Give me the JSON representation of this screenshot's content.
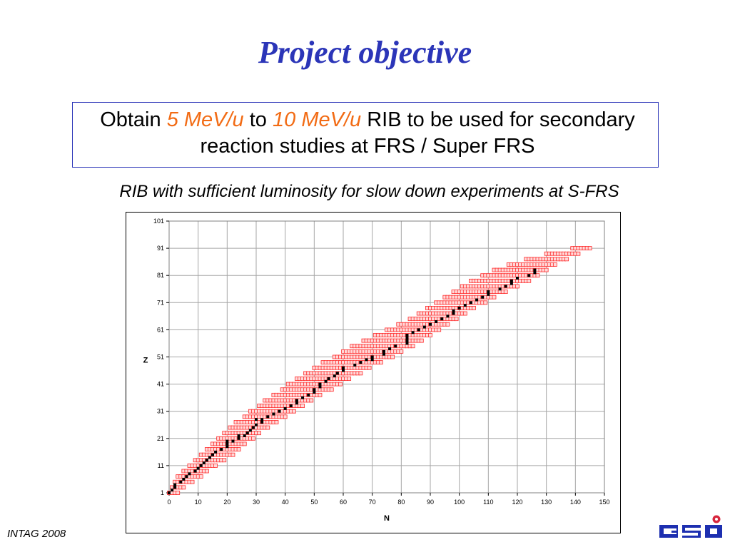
{
  "title": "Project objective",
  "objective": {
    "prefix": "Obtain ",
    "from": "5 MeV/u",
    "to_word": " to ",
    "to": "10 MeV/u",
    "suffix": " RIB to be used for secondary reaction studies at FRS / Super FRS"
  },
  "subtitle": "RIB with sufficient luminosity for slow down experiments at S-FRS",
  "footer": "INTAG 2008",
  "logo_text": "GSI",
  "colors": {
    "title": "#2b35b8",
    "highlight": "#f26b14",
    "band": "#ff2a2a",
    "stable": "#000000"
  },
  "chart_data": {
    "type": "scatter",
    "xlabel": "N",
    "ylabel": "Z",
    "xlim": [
      0,
      150
    ],
    "ylim": [
      1,
      101
    ],
    "x_ticks": [
      0,
      10,
      20,
      30,
      40,
      50,
      60,
      70,
      80,
      90,
      100,
      110,
      120,
      130,
      140,
      150
    ],
    "y_ticks": [
      1,
      11,
      21,
      31,
      41,
      51,
      61,
      71,
      81,
      91,
      101
    ],
    "grid": true,
    "legend": "none",
    "series": [
      {
        "marker": "open red square",
        "band_ranges": [
          [
            1,
            0,
            3
          ],
          [
            3,
            1,
            5
          ],
          [
            5,
            2,
            8
          ],
          [
            7,
            3,
            11
          ],
          [
            9,
            5,
            13
          ],
          [
            11,
            7,
            16
          ],
          [
            13,
            9,
            19
          ],
          [
            15,
            11,
            22
          ],
          [
            17,
            13,
            24
          ],
          [
            19,
            15,
            26
          ],
          [
            21,
            17,
            29
          ],
          [
            23,
            19,
            31
          ],
          [
            25,
            21,
            34
          ],
          [
            27,
            23,
            37
          ],
          [
            29,
            26,
            40
          ],
          [
            31,
            28,
            43
          ],
          [
            33,
            31,
            46
          ],
          [
            35,
            33,
            49
          ],
          [
            37,
            36,
            52
          ],
          [
            39,
            39,
            56
          ],
          [
            41,
            41,
            59
          ],
          [
            43,
            44,
            62
          ],
          [
            45,
            47,
            66
          ],
          [
            47,
            50,
            69
          ],
          [
            49,
            53,
            73
          ],
          [
            51,
            57,
            77
          ],
          [
            53,
            60,
            80
          ],
          [
            55,
            63,
            84
          ],
          [
            57,
            67,
            87
          ],
          [
            59,
            71,
            90
          ],
          [
            61,
            75,
            93
          ],
          [
            63,
            79,
            96
          ],
          [
            65,
            83,
            99
          ],
          [
            67,
            86,
            102
          ],
          [
            69,
            89,
            105
          ],
          [
            71,
            92,
            109
          ],
          [
            73,
            95,
            112
          ],
          [
            75,
            98,
            116
          ],
          [
            77,
            101,
            120
          ],
          [
            79,
            104,
            124
          ],
          [
            81,
            108,
            127
          ],
          [
            83,
            112,
            130
          ],
          [
            85,
            117,
            133
          ],
          [
            87,
            123,
            137
          ],
          [
            89,
            130,
            141
          ],
          [
            91,
            139,
            145
          ]
        ]
      },
      {
        "marker": "filled black square",
        "stable_points": [
          [
            1,
            0
          ],
          [
            2,
            1
          ],
          [
            3,
            2
          ],
          [
            4,
            2
          ],
          [
            5,
            4
          ],
          [
            6,
            5
          ],
          [
            7,
            6
          ],
          [
            8,
            7
          ],
          [
            9,
            9
          ],
          [
            10,
            10
          ],
          [
            11,
            11
          ],
          [
            12,
            12
          ],
          [
            13,
            13
          ],
          [
            14,
            14
          ],
          [
            15,
            15
          ],
          [
            16,
            16
          ],
          [
            17,
            18
          ],
          [
            18,
            20
          ],
          [
            19,
            20
          ],
          [
            20,
            20
          ],
          [
            20,
            22
          ],
          [
            21,
            24
          ],
          [
            22,
            24
          ],
          [
            22,
            26
          ],
          [
            23,
            27
          ],
          [
            24,
            28
          ],
          [
            25,
            29
          ],
          [
            26,
            30
          ],
          [
            27,
            32
          ],
          [
            28,
            30
          ],
          [
            28,
            32
          ],
          [
            29,
            34
          ],
          [
            30,
            36
          ],
          [
            31,
            38
          ],
          [
            32,
            40
          ],
          [
            33,
            42
          ],
          [
            34,
            44
          ],
          [
            35,
            44
          ],
          [
            36,
            46
          ],
          [
            37,
            48
          ],
          [
            38,
            50
          ],
          [
            39,
            50
          ],
          [
            40,
            52
          ],
          [
            41,
            52
          ],
          [
            42,
            54
          ],
          [
            43,
            55
          ],
          [
            44,
            57
          ],
          [
            45,
            58
          ],
          [
            46,
            60
          ],
          [
            47,
            60
          ],
          [
            48,
            64
          ],
          [
            49,
            66
          ],
          [
            50,
            68
          ],
          [
            50,
            70
          ],
          [
            51,
            70
          ],
          [
            52,
            74
          ],
          [
            53,
            74
          ],
          [
            54,
            76
          ],
          [
            55,
            78
          ],
          [
            56,
            82
          ],
          [
            57,
            82
          ],
          [
            58,
            82
          ],
          [
            59,
            82
          ],
          [
            60,
            84
          ],
          [
            61,
            86
          ],
          [
            62,
            88
          ],
          [
            63,
            90
          ],
          [
            64,
            92
          ],
          [
            65,
            94
          ],
          [
            66,
            96
          ],
          [
            67,
            98
          ],
          [
            68,
            98
          ],
          [
            69,
            100
          ],
          [
            70,
            102
          ],
          [
            71,
            104
          ],
          [
            72,
            106
          ],
          [
            73,
            108
          ],
          [
            74,
            110
          ],
          [
            75,
            110
          ],
          [
            76,
            114
          ],
          [
            77,
            116
          ],
          [
            78,
            118
          ],
          [
            79,
            118
          ],
          [
            80,
            120
          ],
          [
            81,
            124
          ],
          [
            82,
            126
          ],
          [
            83,
            126
          ]
        ]
      }
    ]
  }
}
